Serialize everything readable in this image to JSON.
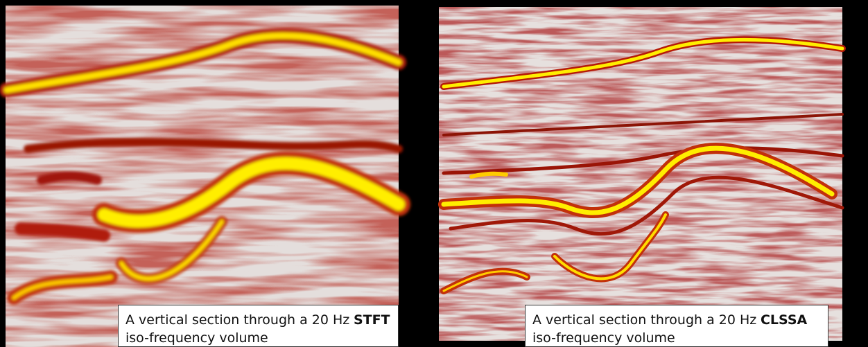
{
  "panels": [
    {
      "caption": {
        "prefix": "A vertical section through a 20 Hz",
        "method": "STFT",
        "suffix": "iso-frequency volume"
      }
    },
    {
      "caption": {
        "prefix": "A vertical section through a 20 Hz",
        "method": "CLSSA",
        "suffix": "iso-frequency volume"
      }
    }
  ]
}
